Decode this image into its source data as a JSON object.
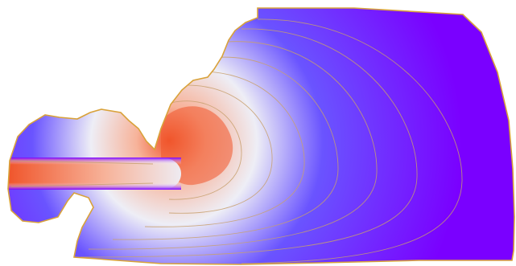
{
  "figure": {
    "kind": "scalar-field-contour-rendering",
    "background_color": "#ffffff",
    "colormap": {
      "name": "blue-white-red",
      "low_color": "#7a00ff",
      "mid_low_color": "#6a54ff",
      "mid_color": "#eeeef6",
      "mid_high_color": "#f7b39a",
      "high_color": "#f0552b"
    },
    "contour_line_color": "#c8a06e",
    "boundary_edge_color": "#d9a23a",
    "contour_levels_shown": 9
  }
}
